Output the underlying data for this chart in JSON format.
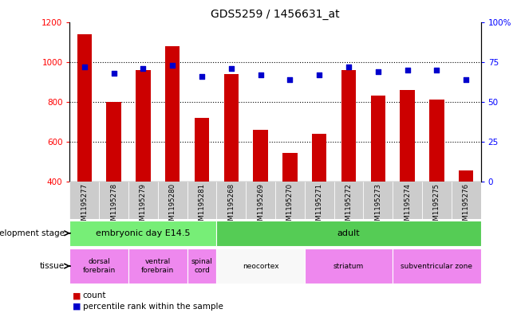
{
  "title": "GDS5259 / 1456631_at",
  "samples": [
    "GSM1195277",
    "GSM1195278",
    "GSM1195279",
    "GSM1195280",
    "GSM1195281",
    "GSM1195268",
    "GSM1195269",
    "GSM1195270",
    "GSM1195271",
    "GSM1195272",
    "GSM1195273",
    "GSM1195274",
    "GSM1195275",
    "GSM1195276"
  ],
  "counts": [
    1140,
    800,
    960,
    1080,
    720,
    940,
    660,
    545,
    640,
    960,
    830,
    860,
    810,
    455
  ],
  "percentiles": [
    72,
    68,
    71,
    73,
    66,
    71,
    67,
    64,
    67,
    72,
    69,
    70,
    70,
    64
  ],
  "ylim_left": [
    400,
    1200
  ],
  "ylim_right": [
    0,
    100
  ],
  "yticks_left": [
    400,
    600,
    800,
    1000,
    1200
  ],
  "yticks_right": [
    0,
    25,
    50,
    75,
    100
  ],
  "bar_color": "#cc0000",
  "dot_color": "#0000cc",
  "dev_stage_groups": [
    {
      "label": "embryonic day E14.5",
      "start": 0,
      "end": 5,
      "color": "#77ee77"
    },
    {
      "label": "adult",
      "start": 5,
      "end": 14,
      "color": "#55cc55"
    }
  ],
  "tissue_groups": [
    {
      "label": "dorsal\nforebrain",
      "start": 0,
      "end": 2,
      "color": "#ee88ee"
    },
    {
      "label": "ventral\nforebrain",
      "start": 2,
      "end": 4,
      "color": "#ee88ee"
    },
    {
      "label": "spinal\ncord",
      "start": 4,
      "end": 5,
      "color": "#ee88ee"
    },
    {
      "label": "neocortex",
      "start": 5,
      "end": 8,
      "color": "#f8f8f8"
    },
    {
      "label": "striatum",
      "start": 8,
      "end": 11,
      "color": "#ee88ee"
    },
    {
      "label": "subventricular zone",
      "start": 11,
      "end": 14,
      "color": "#ee88ee"
    }
  ],
  "dev_stage_label": "development stage",
  "tissue_label": "tissue",
  "legend_count": "count",
  "legend_pct": "percentile rank within the sample",
  "bar_width": 0.5,
  "dot_size": 25,
  "xtick_bg_color": "#cccccc",
  "spine_color": "#000000"
}
